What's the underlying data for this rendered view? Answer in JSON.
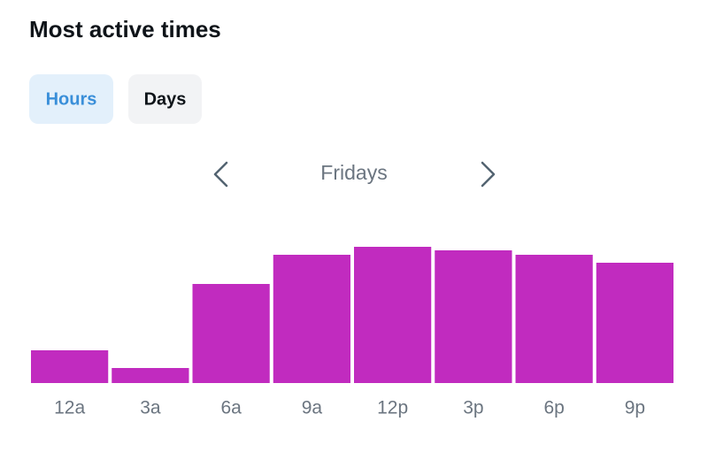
{
  "header": {
    "title": "Most active times"
  },
  "tabs": [
    "Hours",
    "Days"
  ],
  "navigator": {
    "label": "Fridays"
  },
  "chart_data": {
    "type": "bar",
    "categories": [
      "12a",
      "3a",
      "6a",
      "9a",
      "12p",
      "3p",
      "6p",
      "9p"
    ],
    "values": [
      37,
      17,
      112,
      145,
      154,
      150,
      145,
      136
    ],
    "color": "#c12bbf"
  }
}
